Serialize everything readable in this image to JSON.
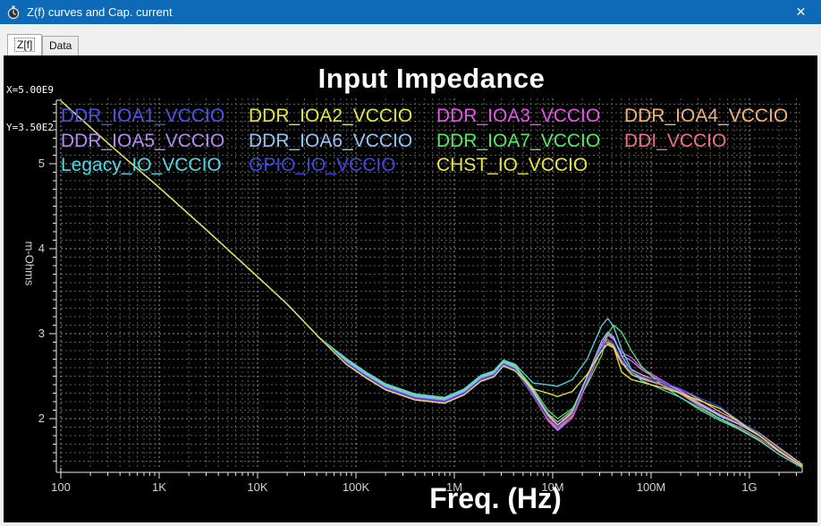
{
  "window": {
    "title": "Z(f) curves and Cap. current",
    "close_label": "✕",
    "icon": "stopwatch-icon"
  },
  "tabs": [
    {
      "label": "Z[f]",
      "active": true
    },
    {
      "label": "Data",
      "active": false
    }
  ],
  "cursor_readout": {
    "x": "X=5.00E9",
    "y": "Y=3.50E2"
  },
  "colors": {
    "titlebar": "#0e69b6",
    "plot_bg": "#000000",
    "grid_minor": "#5c5c5c",
    "grid_major": "#9a9a9a",
    "axis": "#ededed",
    "tick_label": "#d4d4d4"
  },
  "chart_data": {
    "type": "line",
    "title": "Input Impedance",
    "xlabel": "Freq. (Hz)",
    "ylabel": "m-Ohms",
    "x_scale": "log",
    "x_range_log10": [
      2.0,
      9.54
    ],
    "y_range": [
      1.42,
      5.77
    ],
    "yticks": [
      2,
      3,
      4,
      5
    ],
    "y_minor_step": 0.1,
    "grid": "dotted",
    "legend_position": "top-left-inside",
    "xticks": [
      {
        "log10": 2,
        "label": "100"
      },
      {
        "log10": 3,
        "label": "1K"
      },
      {
        "log10": 4,
        "label": "10K"
      },
      {
        "log10": 5,
        "label": "100K"
      },
      {
        "log10": 6,
        "label": "1M"
      },
      {
        "log10": 7,
        "label": "10M"
      },
      {
        "log10": 8,
        "label": "100M"
      },
      {
        "log10": 9,
        "label": "1G"
      }
    ],
    "x_log10": [
      2.0,
      2.5,
      3.0,
      3.5,
      4.0,
      4.3,
      4.63,
      4.9,
      5.1,
      5.3,
      5.6,
      5.9,
      6.1,
      6.27,
      6.4,
      6.5,
      6.62,
      6.8,
      6.95,
      7.05,
      7.2,
      7.35,
      7.5,
      7.56,
      7.62,
      7.7,
      7.8,
      7.9,
      8.1,
      8.3,
      8.5,
      8.7,
      8.9,
      9.1,
      9.3,
      9.54
    ],
    "series": [
      {
        "name": "DDR_IOA1_VCCIO",
        "color": "#4a55e6",
        "values": [
          5.74,
          5.22,
          4.72,
          4.2,
          3.67,
          3.35,
          2.95,
          2.67,
          2.51,
          2.37,
          2.25,
          2.21,
          2.31,
          2.47,
          2.52,
          2.65,
          2.59,
          2.29,
          2.0,
          1.88,
          2.03,
          2.43,
          2.83,
          2.92,
          2.87,
          2.68,
          2.54,
          2.49,
          2.41,
          2.31,
          2.16,
          2.03,
          1.93,
          1.8,
          1.63,
          1.44
        ]
      },
      {
        "name": "DDR_IOA2_VCCIO",
        "color": "#e6e642",
        "values": [
          5.74,
          5.22,
          4.72,
          4.2,
          3.67,
          3.35,
          2.95,
          2.7,
          2.54,
          2.4,
          2.28,
          2.24,
          2.34,
          2.5,
          2.55,
          2.68,
          2.62,
          2.32,
          2.04,
          1.92,
          2.07,
          2.47,
          2.86,
          2.9,
          2.86,
          2.66,
          2.52,
          2.47,
          2.4,
          2.3,
          2.17,
          2.04,
          1.94,
          1.81,
          1.64,
          1.45
        ]
      },
      {
        "name": "DDR_IOA3_VCCIO",
        "color": "#e655e6",
        "values": [
          5.74,
          5.22,
          4.72,
          4.2,
          3.67,
          3.35,
          2.95,
          2.66,
          2.5,
          2.36,
          2.24,
          2.2,
          2.3,
          2.46,
          2.51,
          2.64,
          2.58,
          2.28,
          1.98,
          1.86,
          2.01,
          2.42,
          2.84,
          2.98,
          2.93,
          2.78,
          2.72,
          2.6,
          2.46,
          2.33,
          2.18,
          2.05,
          1.94,
          1.81,
          1.64,
          1.44
        ]
      },
      {
        "name": "DDR_IOA4_VCCIO",
        "color": "#f2b377",
        "values": [
          5.74,
          5.22,
          4.72,
          4.2,
          3.67,
          3.35,
          2.95,
          2.71,
          2.55,
          2.41,
          2.29,
          2.25,
          2.35,
          2.51,
          2.56,
          2.69,
          2.63,
          2.33,
          2.05,
          1.93,
          2.08,
          2.48,
          2.84,
          2.87,
          2.83,
          2.65,
          2.58,
          2.52,
          2.43,
          2.35,
          2.22,
          2.08,
          1.96,
          1.83,
          1.66,
          1.46
        ]
      },
      {
        "name": "DDR_IOA5_VCCIO",
        "color": "#b58af0",
        "values": [
          5.74,
          5.22,
          4.72,
          4.2,
          3.67,
          3.35,
          2.95,
          2.68,
          2.52,
          2.38,
          2.26,
          2.22,
          2.32,
          2.48,
          2.53,
          2.66,
          2.6,
          2.3,
          2.0,
          1.87,
          2.04,
          2.45,
          2.88,
          3.0,
          2.94,
          2.75,
          2.68,
          2.58,
          2.44,
          2.32,
          2.18,
          2.05,
          1.94,
          1.81,
          1.64,
          1.45
        ]
      },
      {
        "name": "DDR_IOA6_VCCIO",
        "color": "#92c5f5",
        "values": [
          5.74,
          5.22,
          4.72,
          4.2,
          3.67,
          3.35,
          2.95,
          2.69,
          2.53,
          2.39,
          2.27,
          2.23,
          2.33,
          2.49,
          2.54,
          2.67,
          2.61,
          2.34,
          2.06,
          1.96,
          2.1,
          2.5,
          2.92,
          3.02,
          2.96,
          2.74,
          2.56,
          2.48,
          2.4,
          2.3,
          2.16,
          2.03,
          1.93,
          1.8,
          1.63,
          1.44
        ]
      },
      {
        "name": "DDR_IOA7_VCCIO",
        "color": "#57e862",
        "values": [
          5.74,
          5.22,
          4.72,
          4.2,
          3.67,
          3.35,
          2.95,
          2.7,
          2.54,
          2.4,
          2.28,
          2.24,
          2.34,
          2.5,
          2.55,
          2.68,
          2.62,
          2.36,
          2.1,
          2.0,
          2.12,
          2.4,
          2.75,
          3.0,
          3.1,
          3.02,
          2.8,
          2.62,
          2.4,
          2.25,
          2.1,
          1.98,
          1.87,
          1.74,
          1.58,
          1.42
        ]
      },
      {
        "name": "DDI_VCCIO",
        "color": "#f2707e",
        "values": [
          5.74,
          5.22,
          4.72,
          4.2,
          3.67,
          3.35,
          2.95,
          2.65,
          2.49,
          2.35,
          2.23,
          2.19,
          2.29,
          2.45,
          2.5,
          2.63,
          2.57,
          2.27,
          1.99,
          1.9,
          2.03,
          2.44,
          2.85,
          2.93,
          2.88,
          2.69,
          2.55,
          2.49,
          2.4,
          2.29,
          2.14,
          2.0,
          1.9,
          1.77,
          1.61,
          1.43
        ]
      },
      {
        "name": "Legacy_IO_VCCIO",
        "color": "#4fd8e8",
        "values": [
          5.74,
          5.22,
          4.72,
          4.2,
          3.67,
          3.35,
          2.95,
          2.71,
          2.55,
          2.41,
          2.29,
          2.25,
          2.35,
          2.51,
          2.56,
          2.69,
          2.64,
          2.42,
          2.4,
          2.38,
          2.46,
          2.7,
          3.1,
          3.18,
          3.08,
          2.82,
          2.58,
          2.45,
          2.35,
          2.25,
          2.12,
          2.0,
          1.88,
          1.75,
          1.58,
          1.42
        ]
      },
      {
        "name": "GPIO_IO_VCCIO",
        "color": "#3c47e8",
        "values": [
          5.74,
          5.22,
          4.72,
          4.2,
          3.67,
          3.35,
          2.95,
          2.66,
          2.5,
          2.36,
          2.24,
          2.2,
          2.3,
          2.46,
          2.51,
          2.64,
          2.58,
          2.28,
          2.01,
          1.91,
          2.05,
          2.46,
          2.84,
          2.92,
          2.88,
          2.7,
          2.56,
          2.5,
          2.44,
          2.35,
          2.24,
          2.14,
          1.97,
          1.82,
          1.64,
          1.44
        ]
      },
      {
        "name": "CHST_IO_VCCIO",
        "color": "#e8e83c",
        "values": [
          5.74,
          5.22,
          4.72,
          4.2,
          3.67,
          3.35,
          2.95,
          2.64,
          2.48,
          2.34,
          2.22,
          2.18,
          2.28,
          2.44,
          2.49,
          2.62,
          2.56,
          2.35,
          2.3,
          2.26,
          2.32,
          2.52,
          2.8,
          2.88,
          2.84,
          2.55,
          2.46,
          2.43,
          2.37,
          2.3,
          2.21,
          2.12,
          1.96,
          1.8,
          1.62,
          1.44
        ]
      }
    ],
    "legend_rows": [
      4,
      4,
      3
    ]
  }
}
